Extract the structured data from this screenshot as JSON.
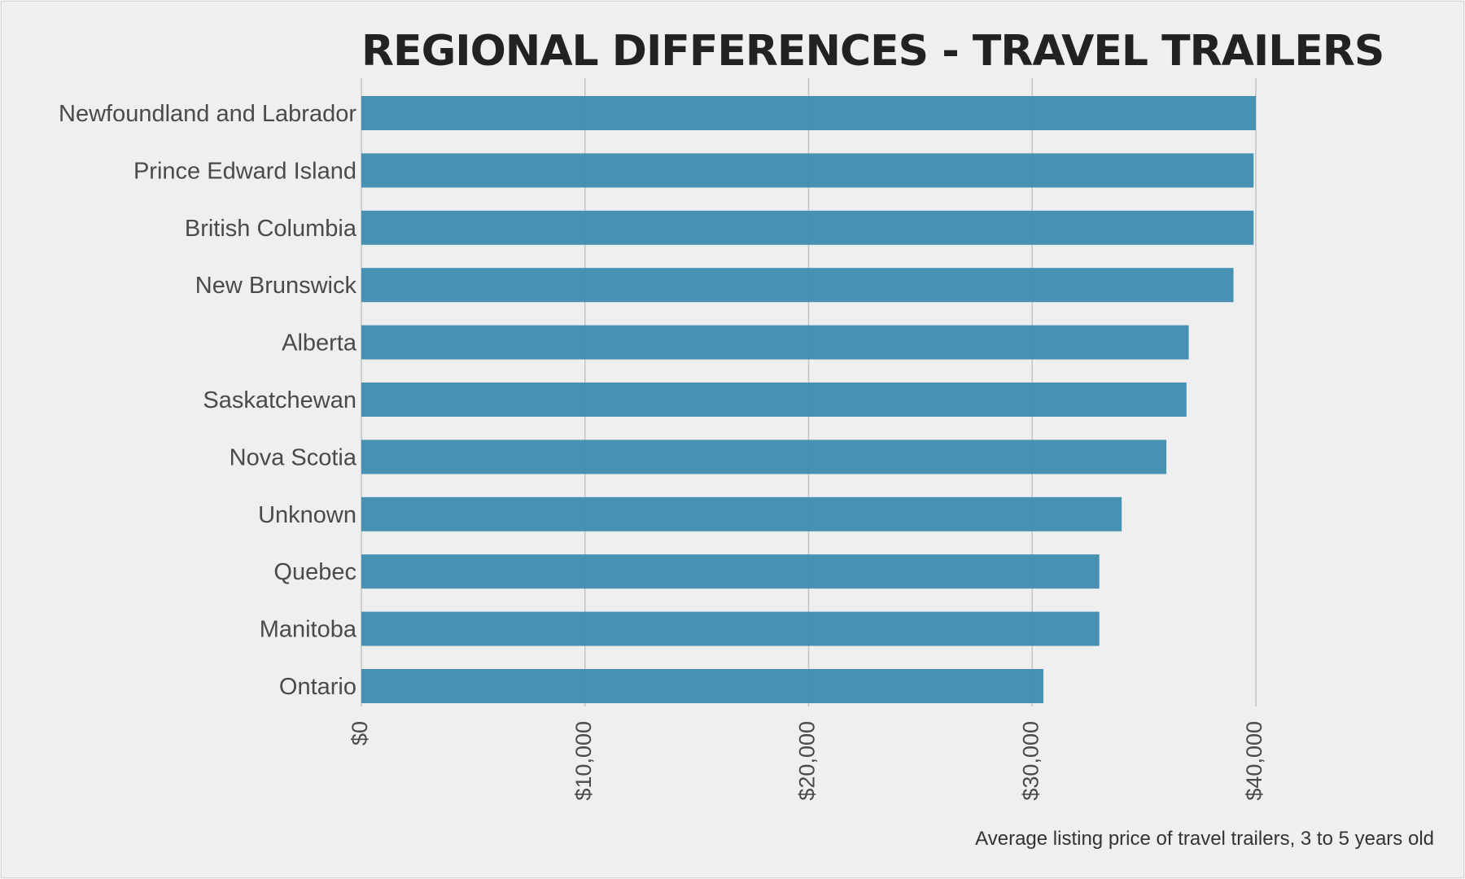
{
  "chart_data": {
    "type": "bar",
    "orientation": "horizontal",
    "title": "REGIONAL DIFFERENCES - TRAVEL TRAILERS",
    "xlabel": "Average listing price of travel trailers, 3 to 5 years old",
    "ylabel": "",
    "categories": [
      "Newfoundland and Labrador",
      "Prince Edward Island",
      "British Columbia",
      "New Brunswick",
      "Alberta",
      "Saskatchewan",
      "Nova Scotia",
      "Unknown",
      "Quebec",
      "Manitoba",
      "Ontario"
    ],
    "values": [
      40000,
      39900,
      39900,
      39000,
      37000,
      36900,
      36000,
      34000,
      33000,
      33000,
      30500
    ],
    "xlim": [
      0,
      40000
    ],
    "xticks": [
      0,
      10000,
      20000,
      30000,
      40000
    ],
    "xtick_labels": [
      "$0",
      "$10,000",
      "$20,000",
      "$30,000",
      "$40,000"
    ],
    "grid": "vertical",
    "bar_color": "#3d8cae",
    "background_color": "#efefef"
  }
}
